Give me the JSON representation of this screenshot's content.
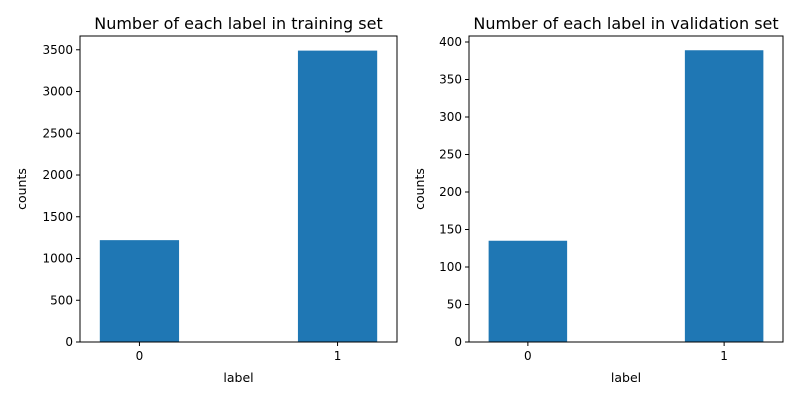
{
  "chart_data": [
    {
      "type": "bar",
      "title": "Number of each label in training set",
      "xlabel": "label",
      "ylabel": "counts",
      "categories": [
        "0",
        "1"
      ],
      "x": [
        0,
        1
      ],
      "values": [
        1220,
        3490
      ],
      "xlim": [
        -0.3,
        1.3
      ],
      "ylim": [
        0,
        3665
      ],
      "yticks": [
        0,
        500,
        1000,
        1500,
        2000,
        2500,
        3000,
        3500
      ],
      "ytick_labels": [
        "0",
        "500",
        "1000",
        "1500",
        "2000",
        "2500",
        "3000",
        "3500"
      ],
      "bar_width": 0.4,
      "bar_color": "#1f77b4",
      "grid": false,
      "legend": "none"
    },
    {
      "type": "bar",
      "title": "Number of each label in validation set",
      "xlabel": "label",
      "ylabel": "counts",
      "categories": [
        "0",
        "1"
      ],
      "x": [
        0,
        1
      ],
      "values": [
        135,
        389
      ],
      "xlim": [
        -0.3,
        1.3
      ],
      "ylim": [
        0,
        408
      ],
      "yticks": [
        0,
        50,
        100,
        150,
        200,
        250,
        300,
        350,
        400
      ],
      "ytick_labels": [
        "0",
        "50",
        "100",
        "150",
        "200",
        "250",
        "300",
        "350",
        "400"
      ],
      "bar_width": 0.4,
      "bar_color": "#1f77b4",
      "grid": false,
      "legend": "none"
    }
  ]
}
